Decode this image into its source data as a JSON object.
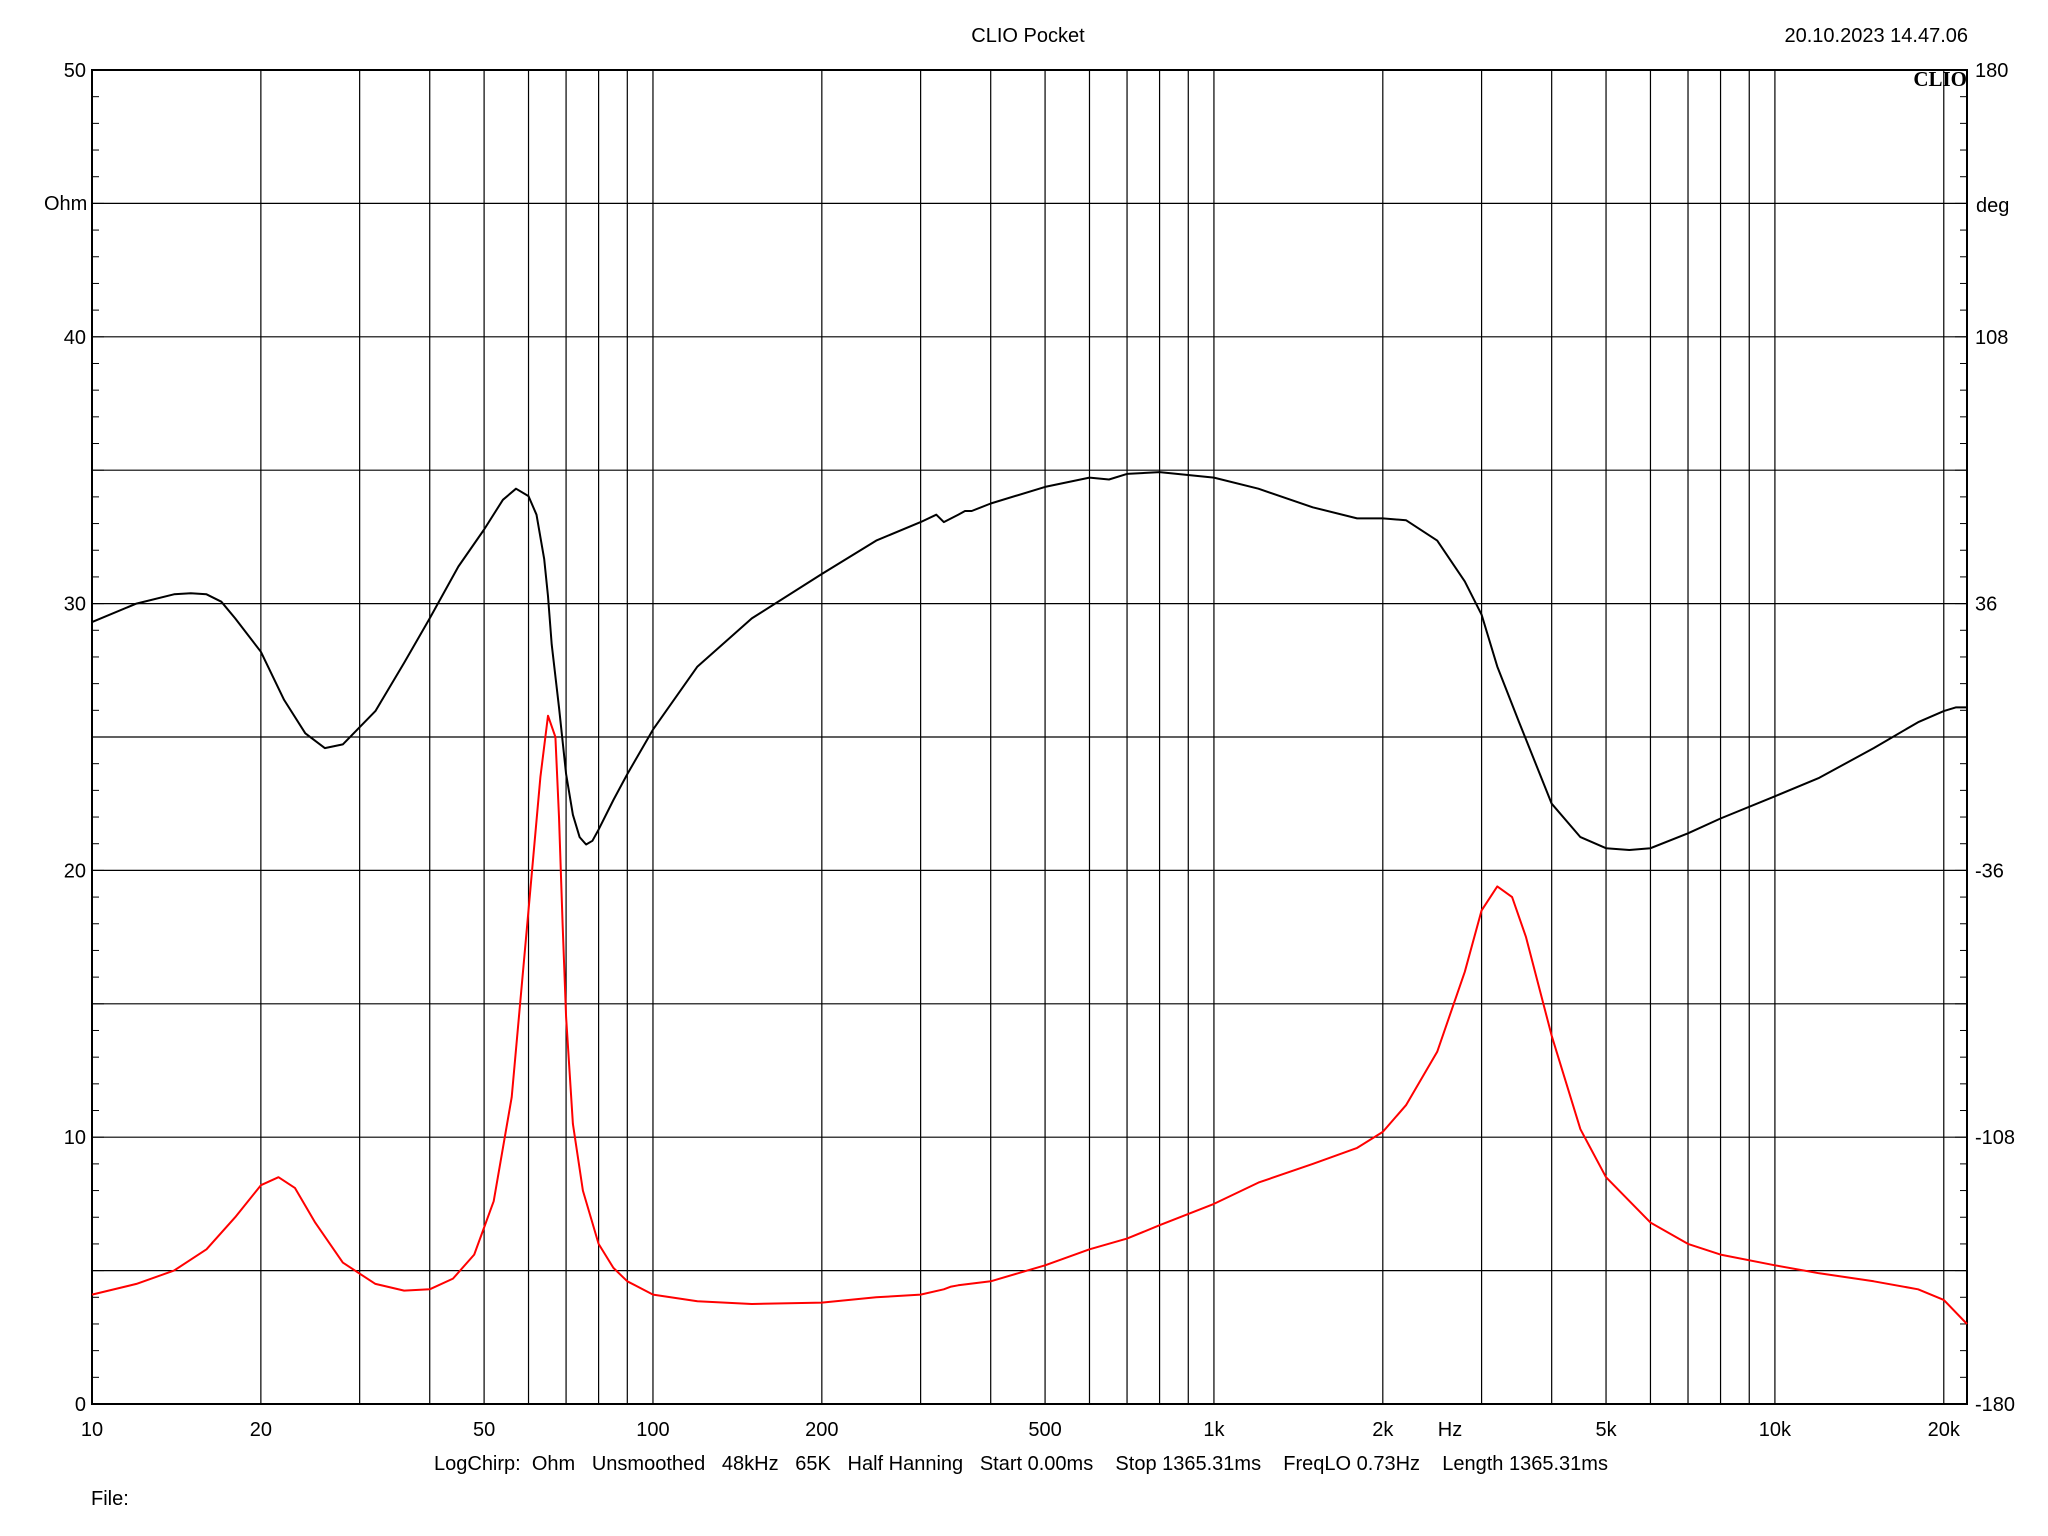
{
  "header": {
    "title": "CLIO Pocket",
    "timestamp": "20.10.2023 14.47.06",
    "logo": "CLIO"
  },
  "footer": {
    "settings": "LogChirp:  Ohm   Unsmoothed   48kHz   65K   Half Hanning   Start 0.00ms    Stop 1365.31ms    FreqLO 0.73Hz    Length 1365.31ms",
    "file_label": "File:"
  },
  "colors": {
    "magnitude": "#ff0000",
    "phase": "#000000",
    "grid": "#000000",
    "background": "#ffffff"
  },
  "chart_data": {
    "type": "line",
    "x_scale": "log",
    "xlim": [
      10,
      22000
    ],
    "ylim_left": [
      0,
      50
    ],
    "ylim_right": [
      -180,
      180
    ],
    "ylabel_left": "Ohm",
    "ylabel_right": "deg",
    "xlabel": "Hz",
    "grid": true,
    "x_tick_labels": [
      {
        "value": 10,
        "label": "10"
      },
      {
        "value": 20,
        "label": "20"
      },
      {
        "value": 50,
        "label": "50"
      },
      {
        "value": 100,
        "label": "100"
      },
      {
        "value": 200,
        "label": "200"
      },
      {
        "value": 500,
        "label": "500"
      },
      {
        "value": 1000,
        "label": "1k"
      },
      {
        "value": 2000,
        "label": "2k"
      },
      {
        "value": 5000,
        "label": "5k"
      },
      {
        "value": 10000,
        "label": "10k"
      },
      {
        "value": 20000,
        "label": "20k"
      }
    ],
    "left_ticks": [
      0,
      10,
      20,
      30,
      40,
      50
    ],
    "right_ticks": [
      -180,
      -108,
      -36,
      36,
      108,
      180
    ],
    "series": [
      {
        "axis": "left",
        "color": "#ff0000",
        "x": [
          10,
          12,
          14,
          16,
          18,
          20,
          21.5,
          23,
          25,
          28,
          32,
          36,
          40,
          44,
          48,
          52,
          56,
          60,
          63,
          65,
          67,
          68,
          69,
          70,
          72,
          75,
          80,
          85,
          90,
          100,
          120,
          150,
          200,
          250,
          300,
          330,
          340,
          350,
          400,
          500,
          600,
          700,
          800,
          1000,
          1200,
          1500,
          1800,
          2000,
          2200,
          2500,
          2800,
          3000,
          3200,
          3400,
          3600,
          4000,
          4500,
          5000,
          6000,
          7000,
          8000,
          10000,
          12000,
          15000,
          18000,
          20000,
          22000
        ],
        "y": [
          4.1,
          4.5,
          5.0,
          5.8,
          7.0,
          8.2,
          8.5,
          8.1,
          6.8,
          5.3,
          4.5,
          4.25,
          4.3,
          4.7,
          5.6,
          7.6,
          11.5,
          18.5,
          23.5,
          25.8,
          25.0,
          22.0,
          18.0,
          14.5,
          10.5,
          8.0,
          6.0,
          5.1,
          4.6,
          4.1,
          3.85,
          3.75,
          3.8,
          4.0,
          4.1,
          4.3,
          4.4,
          4.45,
          4.6,
          5.2,
          5.8,
          6.2,
          6.7,
          7.5,
          8.3,
          9.0,
          9.6,
          10.2,
          11.2,
          13.2,
          16.2,
          18.5,
          19.4,
          19.0,
          17.5,
          13.8,
          10.3,
          8.5,
          6.8,
          6.0,
          5.6,
          5.2,
          4.9,
          4.6,
          4.3,
          3.9,
          3.0
        ]
      },
      {
        "axis": "right",
        "color": "#000000",
        "x": [
          10,
          12,
          14,
          15,
          16,
          17,
          18,
          20,
          22,
          24,
          26,
          28,
          32,
          36,
          40,
          45,
          50,
          54,
          57,
          60,
          62,
          64,
          65,
          66,
          68,
          70,
          72,
          74,
          76,
          78,
          80,
          85,
          90,
          100,
          120,
          150,
          200,
          250,
          300,
          320,
          330,
          340,
          350,
          360,
          370,
          400,
          500,
          600,
          650,
          700,
          800,
          1000,
          1200,
          1500,
          1800,
          2000,
          2200,
          2500,
          2800,
          3000,
          3200,
          3500,
          4000,
          4500,
          5000,
          5500,
          6000,
          7000,
          8000,
          10000,
          12000,
          15000,
          18000,
          20000,
          21000,
          22000
        ],
        "y": [
          31,
          36,
          38.5,
          38.8,
          38.5,
          36.5,
          32,
          23,
          10,
          1,
          -3,
          -2,
          7,
          20,
          32,
          46,
          56,
          64,
          67,
          65,
          60,
          48,
          38,
          25,
          8,
          -10,
          -21,
          -27,
          -29,
          -28,
          -25,
          -17,
          -10,
          2,
          19,
          32,
          44,
          53,
          58,
          60,
          58,
          59,
          60,
          61,
          61,
          63,
          67.5,
          70,
          69.5,
          71,
          71.5,
          70,
          67,
          62,
          59,
          59,
          58.5,
          53,
          42,
          33,
          19,
          4,
          -18,
          -27,
          -30,
          -30.5,
          -30,
          -26,
          -22,
          -16,
          -11,
          -3,
          4,
          7,
          8,
          8
        ]
      }
    ]
  }
}
